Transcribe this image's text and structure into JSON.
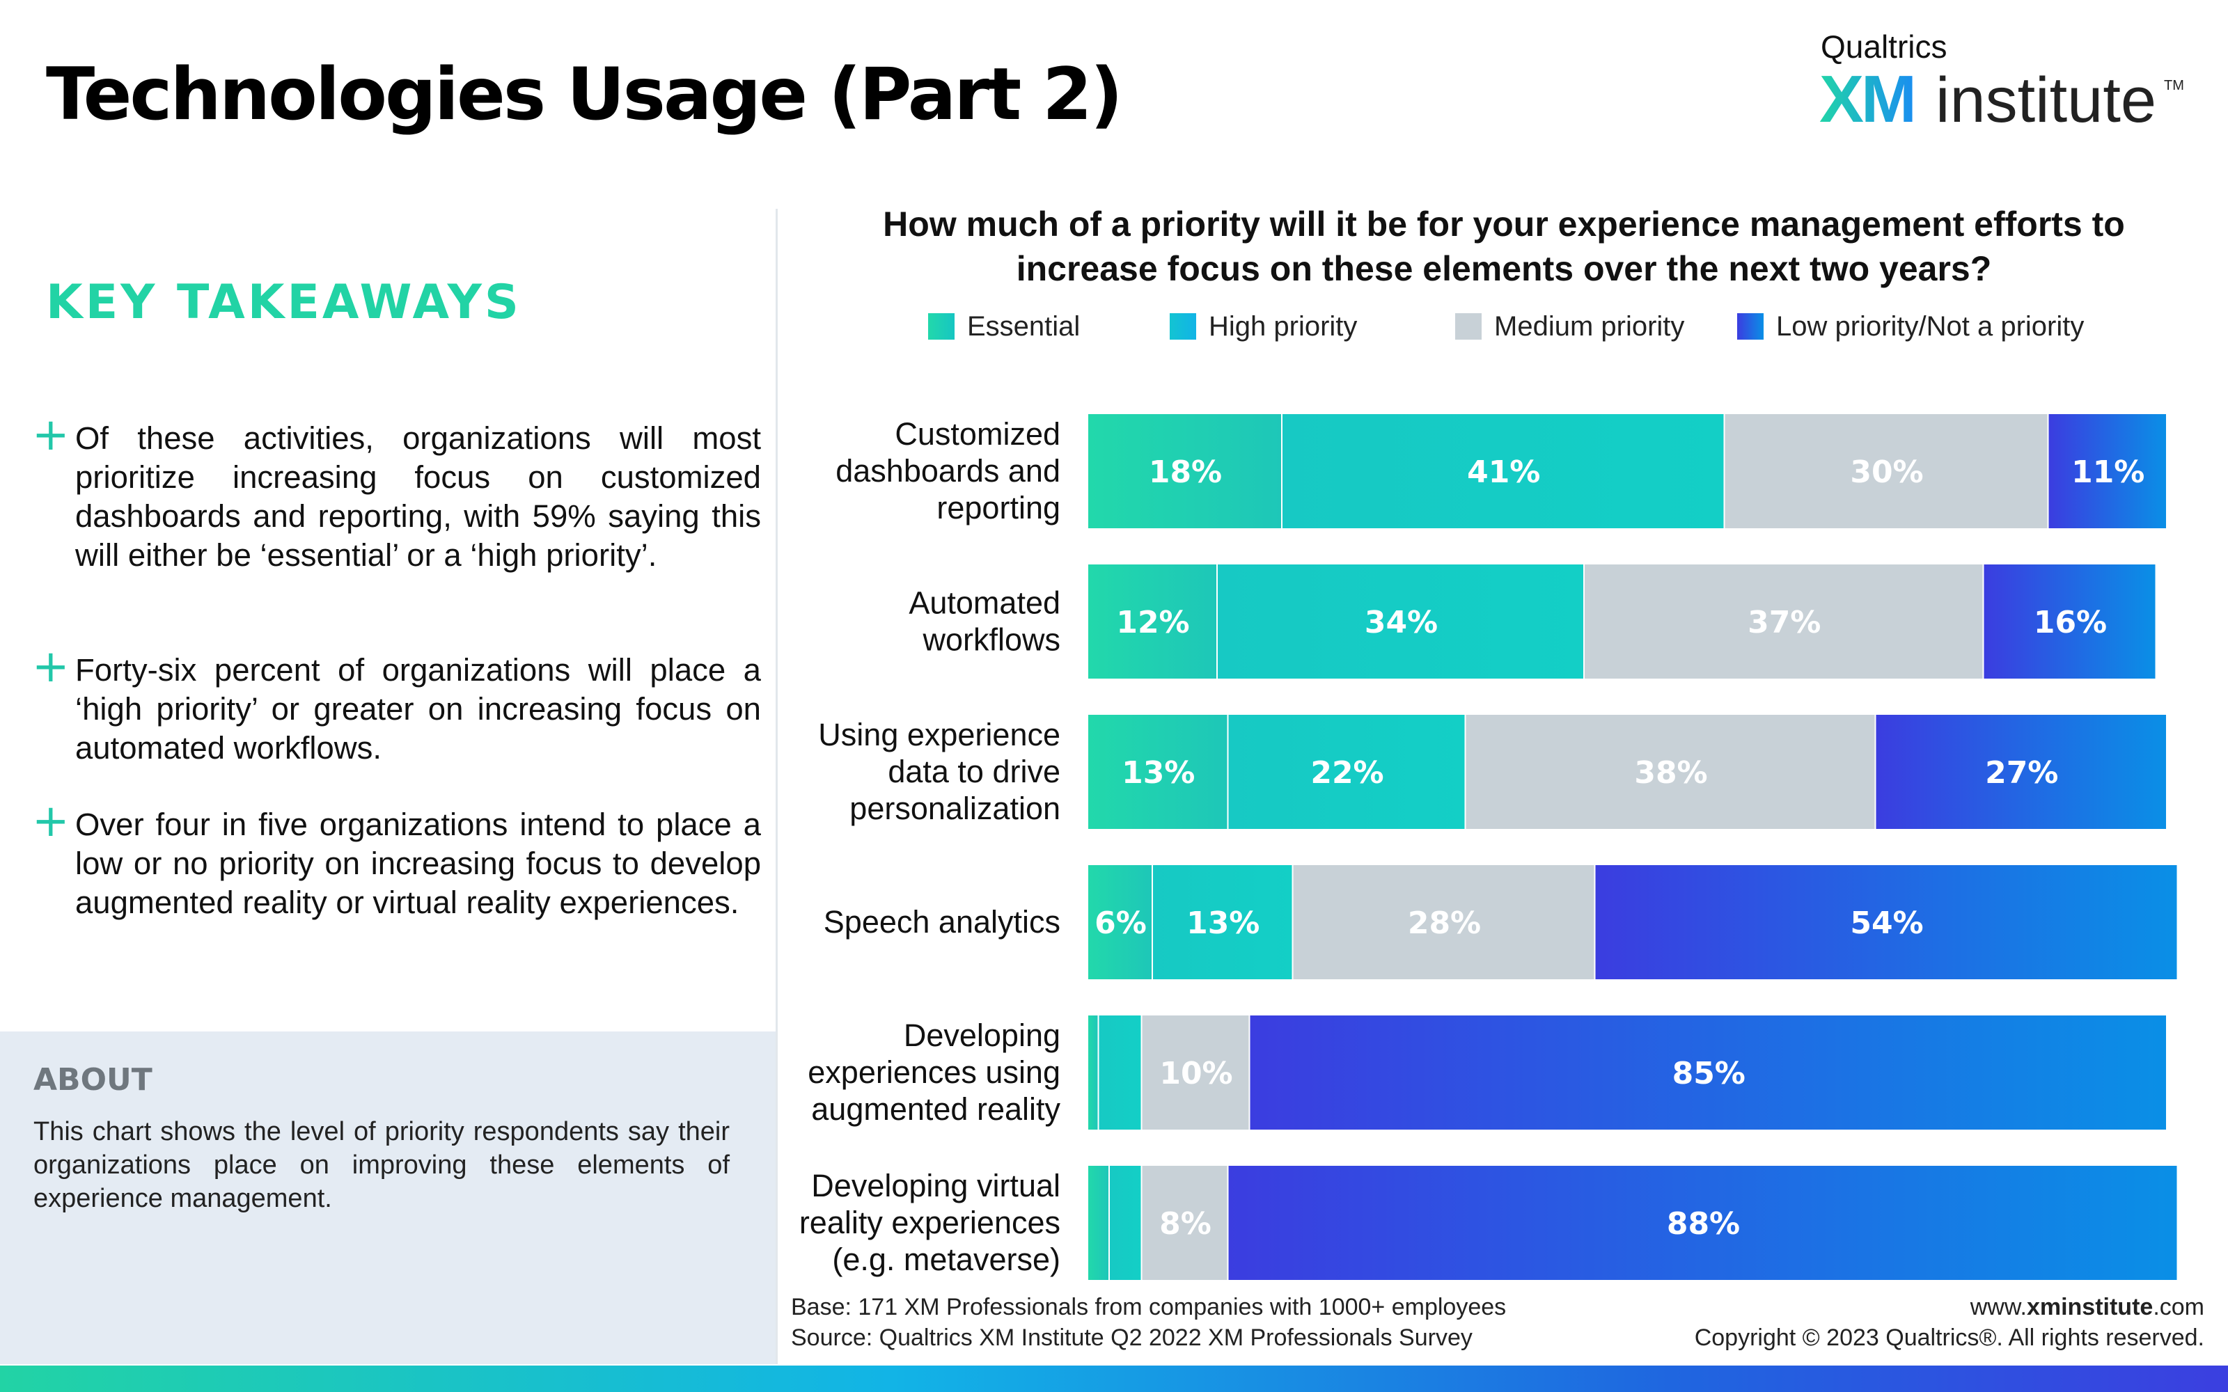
{
  "title": "Technologies Usage (Part 2)",
  "logo": {
    "top": "Qualtrics",
    "xm": "XM",
    "institute": "institute",
    "tm": "TM"
  },
  "key_takeaways": {
    "heading": "KEY TAKEAWAYS",
    "items": [
      "Of these activities, organizations will most prioritize increasing focus on customized dashboards and reporting, with 59% saying this will either be ‘essential’ or a ‘high priority’.",
      "Forty-six percent of organizations will place a ‘high priority’ or greater on increasing focus on automated workflows.",
      "Over four in five organizations intend to place a low or no priority on increasing focus to develop augmented reality or virtual reality experiences."
    ]
  },
  "about": {
    "heading": "ABOUT",
    "text": "This chart shows the level of priority respondents say their organizations place on improving these elements of experience management."
  },
  "footer": {
    "base": "Base: 171 XM Professionals from companies with 1000+ employees",
    "source": "Source: Qualtrics XM Institute Q2 2022 XM Professionals Survey",
    "website_prefix": "www.",
    "website_bold": "xminstitute",
    "website_suffix": ".com",
    "copyright": "Copyright © 2023 Qualtrics®. All rights reserved."
  },
  "colors": {
    "essential": [
      "#22d8ab",
      "#1ec7b8"
    ],
    "high": [
      "#17c9c4",
      "#13cfc6"
    ],
    "medium": [
      "#c8d1d7",
      "#c8d1d7"
    ],
    "low": [
      "#3b3de0",
      "#0a8fe6"
    ],
    "accent": "#22d3a5"
  },
  "chart_data": {
    "type": "bar",
    "orientation": "horizontal",
    "stacked": true,
    "title": "How much of a priority will it be for your experience management efforts to increase focus on these elements over the next two years?",
    "legend_position": "top",
    "categories": [
      "Customized dashboards and reporting",
      "Automated workflows",
      "Using experience data to drive personalization",
      "Speech analytics",
      "Developing experiences using augmented reality",
      "Developing virtual reality experiences (e.g. metaverse)"
    ],
    "series": [
      {
        "name": "Essential",
        "values": [
          18,
          12,
          13,
          6,
          1,
          2
        ]
      },
      {
        "name": "High priority",
        "values": [
          41,
          34,
          22,
          13,
          4,
          3
        ]
      },
      {
        "name": "Medium priority",
        "values": [
          30,
          37,
          38,
          28,
          10,
          8
        ]
      },
      {
        "name": "Low priority/Not a priority",
        "values": [
          11,
          16,
          27,
          54,
          85,
          88
        ]
      }
    ],
    "value_labels": [
      [
        "18%",
        "41%",
        "30%",
        "11%"
      ],
      [
        "12%",
        "34%",
        "37%",
        "16%"
      ],
      [
        "13%",
        "22%",
        "38%",
        "27%"
      ],
      [
        "6%",
        "13%",
        "28%",
        "54%"
      ],
      [
        "",
        "",
        "10%",
        "85%"
      ],
      [
        "",
        "",
        "8%",
        "88%"
      ]
    ]
  }
}
